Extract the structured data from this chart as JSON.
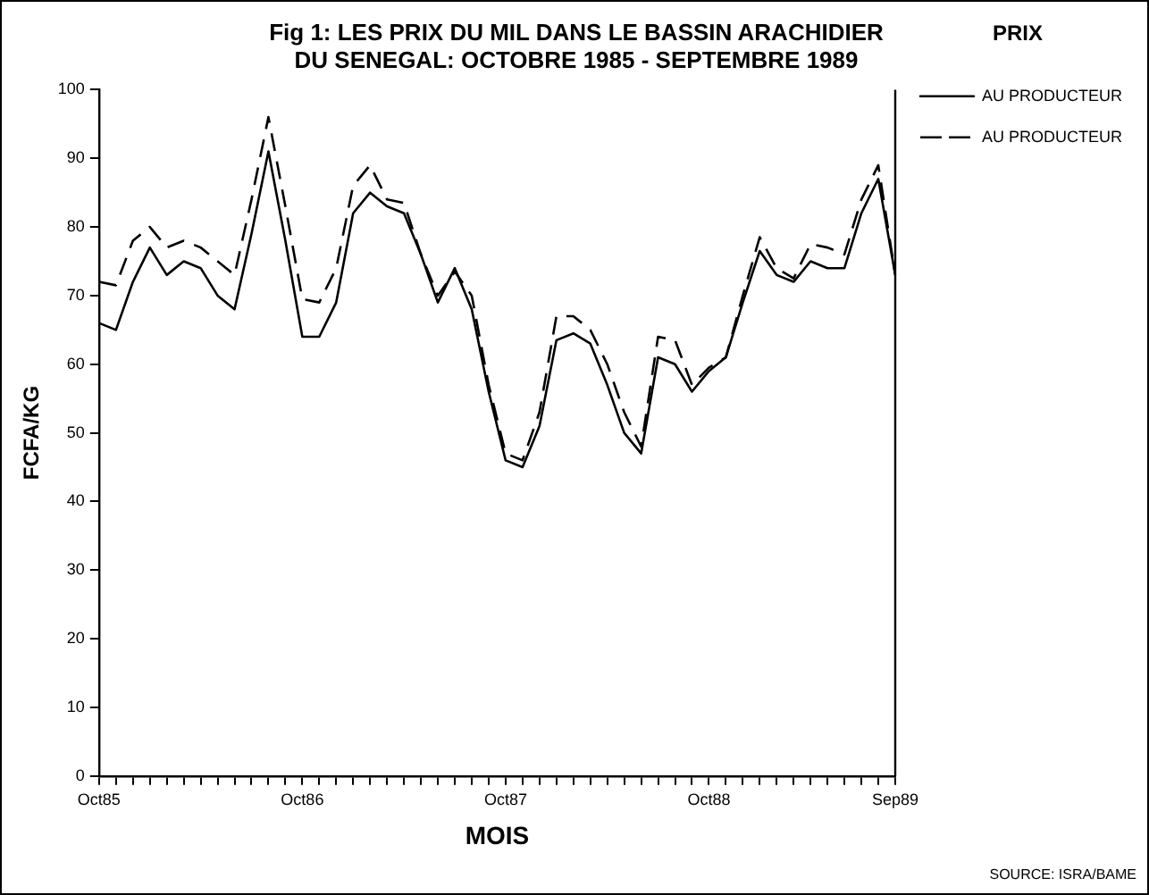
{
  "chart_data": {
    "type": "line",
    "title": "Fig 1: LES PRIX DU MIL DANS LE BASSIN ARACHIDIER\nDU SENEGAL: OCTOBRE 1985 - SEPTEMBRE 1989",
    "xlabel": "MOIS",
    "ylabel": "FCFA/KG",
    "legend_title": "PRIX",
    "legend": "right",
    "grid": false,
    "marker": "none",
    "categories": [
      "Oct85",
      null,
      null,
      null,
      null,
      null,
      null,
      null,
      null,
      null,
      null,
      null,
      "Oct86",
      null,
      null,
      null,
      null,
      null,
      null,
      null,
      null,
      null,
      null,
      null,
      "Oct87",
      null,
      null,
      null,
      null,
      null,
      null,
      null,
      null,
      null,
      null,
      null,
      "Oct88",
      null,
      null,
      null,
      null,
      null,
      null,
      null,
      null,
      null,
      null,
      "Sep89"
    ],
    "ylim": [
      0,
      100
    ],
    "yticks": [
      0,
      10,
      20,
      30,
      40,
      50,
      60,
      70,
      80,
      90,
      100
    ],
    "series": [
      {
        "name": "AU PRODUCTEUR",
        "color": "#000000",
        "line_style": "solid",
        "values": [
          66,
          65,
          72,
          77,
          73,
          75,
          74,
          70,
          68,
          79,
          91,
          78,
          64,
          64,
          69,
          82,
          85,
          83,
          82,
          76,
          69,
          74,
          68,
          56,
          46,
          45,
          51,
          63.5,
          64.5,
          63,
          57,
          50,
          47,
          61,
          60,
          56,
          59,
          61,
          69,
          76.5,
          73,
          72,
          75,
          74,
          74,
          82,
          87,
          73
        ]
      },
      {
        "name": "AU PRODUCTEUR",
        "color": "#000000",
        "line_style": "dashed",
        "values": [
          72,
          71.5,
          78,
          80,
          77,
          78,
          77,
          75,
          73,
          84,
          96,
          83,
          69.5,
          69,
          74,
          86,
          89,
          84,
          83.5,
          76,
          70,
          73.5,
          70,
          57,
          47,
          46,
          53,
          67,
          67,
          65,
          60,
          53,
          48,
          64,
          63.5,
          57,
          59.5,
          61,
          70,
          78.5,
          74,
          72.5,
          77.5,
          77,
          76,
          84,
          89,
          73
        ]
      }
    ],
    "annotations": [
      "SOURCE: ISRA/BAME"
    ]
  }
}
